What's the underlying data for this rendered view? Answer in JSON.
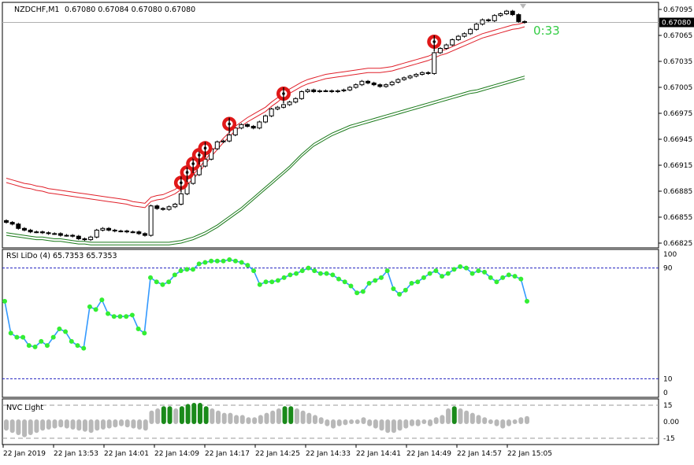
{
  "header": {
    "symbol": "NZDCHF,M1",
    "ohlc": "0.67080 0.67084 0.67080 0.67080"
  },
  "timer": "0:33",
  "price_axis": {
    "ticks": [
      "0.67095",
      "0.67065",
      "0.67035",
      "0.67005",
      "0.66975",
      "0.66945",
      "0.66915",
      "0.66885",
      "0.66855",
      "0.66825"
    ],
    "current": "0.67080"
  },
  "rsi_panel": {
    "title": "RSI LiDo (4) 65.7353 65.7353",
    "levels": [
      "100",
      "90",
      "10",
      "0"
    ]
  },
  "nvc_panel": {
    "title": "NVC Light",
    "levels": [
      "15",
      "0.00",
      "-15"
    ]
  },
  "time_axis": [
    "22 Jan 2019",
    "22 Jan 13:53",
    "22 Jan 14:01",
    "22 Jan 14:09",
    "22 Jan 14:17",
    "22 Jan 14:25",
    "22 Jan 14:33",
    "22 Jan 14:41",
    "22 Jan 14:49",
    "22 Jan 14:57",
    "22 Jan 15:05"
  ],
  "colors": {
    "upper_band": "#e0202a",
    "lower_band": "#1a7a1a",
    "rsi_line": "#3399ff",
    "rsi_dot": "#33ee33",
    "nvc_up": "#1a8a1a",
    "nvc_neutral": "#b8b8b8",
    "signal": "#e01818",
    "timer": "#33cc44"
  },
  "chart_data": {
    "type": "candlestick",
    "main": {
      "close": [
        0.66849,
        0.66847,
        0.66842,
        0.6684,
        0.66838,
        0.66838,
        0.66837,
        0.66836,
        0.66836,
        0.66834,
        0.66834,
        0.66833,
        0.6683,
        0.66829,
        0.66832,
        0.6684,
        0.66842,
        0.6684,
        0.66839,
        0.66839,
        0.66838,
        0.66838,
        0.66836,
        0.66834,
        0.66868,
        0.66865,
        0.66864,
        0.66867,
        0.6687,
        0.66882,
        0.66894,
        0.66904,
        0.66914,
        0.66922,
        0.66934,
        0.66942,
        0.66943,
        0.6695,
        0.66958,
        0.66962,
        0.6696,
        0.66958,
        0.66965,
        0.66972,
        0.6698,
        0.66982,
        0.66985,
        0.66988,
        0.66992,
        0.67,
        0.67002,
        0.67,
        0.67001,
        0.67001,
        0.67,
        0.67001,
        0.67002,
        0.67005,
        0.67008,
        0.67012,
        0.6701,
        0.67008,
        0.67006,
        0.67008,
        0.67011,
        0.67014,
        0.67016,
        0.67018,
        0.6702,
        0.67022,
        0.67021,
        0.67045,
        0.6705,
        0.67054,
        0.6706,
        0.67064,
        0.67067,
        0.67072,
        0.67078,
        0.67083,
        0.67082,
        0.67088,
        0.6709,
        0.67093,
        0.67089,
        0.67081,
        0.6708
      ],
      "upper_band": [
        0.669,
        0.66898,
        0.66896,
        0.66894,
        0.66893,
        0.66891,
        0.6689,
        0.66888,
        0.66887,
        0.66886,
        0.66885,
        0.66884,
        0.66883,
        0.66882,
        0.66881,
        0.6688,
        0.66879,
        0.66878,
        0.66877,
        0.66876,
        0.66875,
        0.66873,
        0.66872,
        0.66871,
        0.66878,
        0.6688,
        0.66881,
        0.66884,
        0.66887,
        0.66892,
        0.66898,
        0.66904,
        0.66912,
        0.66921,
        0.6693,
        0.66938,
        0.66946,
        0.66953,
        0.6696,
        0.66965,
        0.6697,
        0.66974,
        0.66978,
        0.66982,
        0.66988,
        0.66993,
        0.66999,
        0.67003,
        0.67007,
        0.67011,
        0.67014,
        0.67016,
        0.67018,
        0.6702,
        0.67021,
        0.67022,
        0.67023,
        0.67024,
        0.67025,
        0.67026,
        0.67027,
        0.67027,
        0.67027,
        0.67028,
        0.67029,
        0.67031,
        0.67033,
        0.67035,
        0.67037,
        0.67039,
        0.67041,
        0.67044,
        0.67047,
        0.67049,
        0.67052,
        0.67055,
        0.67058,
        0.67061,
        0.67064,
        0.67067,
        0.67069,
        0.67071,
        0.67073,
        0.67075,
        0.67077,
        0.67078,
        0.6708
      ],
      "mid_band": [
        0.66891,
        0.66889,
        0.66887,
        0.66885,
        0.66883,
        0.66881,
        0.66879,
        0.66877,
        0.66876,
        0.66874,
        0.66873,
        0.66872,
        0.66871,
        0.6687,
        0.66869,
        0.66868,
        0.66867,
        0.66866,
        0.66865,
        0.66864,
        0.66863,
        0.66862,
        0.66862,
        0.66862,
        0.66865,
        0.66866,
        0.66867,
        0.66868,
        0.66871,
        0.66876,
        0.66882,
        0.66889,
        0.66896,
        0.66904,
        0.66912,
        0.6692,
        0.66927,
        0.66934,
        0.66941,
        0.66947,
        0.66951,
        0.66955,
        0.66959,
        0.66963,
        0.66967,
        0.66972,
        0.66977,
        0.66982,
        0.66986,
        0.66989,
        0.66991,
        0.66993,
        0.66995,
        0.66997,
        0.66998,
        0.66999,
        0.67,
        0.67001,
        0.67002,
        0.67003,
        0.67004,
        0.67005,
        0.67005,
        0.67006,
        0.67007,
        0.67008,
        0.67009,
        0.67011,
        0.67013,
        0.67015,
        0.67017,
        0.6702,
        0.67023,
        0.67026,
        0.67029,
        0.67032,
        0.67035,
        0.67038,
        0.67041,
        0.67045,
        0.67048,
        0.67051,
        0.67054,
        0.67057,
        0.67059,
        0.67062,
        0.67064
      ],
      "lower_band": [
        0.66837,
        0.66836,
        0.66835,
        0.66834,
        0.66833,
        0.66832,
        0.66832,
        0.66831,
        0.6683,
        0.6683,
        0.66829,
        0.66828,
        0.66827,
        0.66827,
        0.66826,
        0.66826,
        0.66826,
        0.66826,
        0.66826,
        0.66826,
        0.66826,
        0.66826,
        0.66826,
        0.66826,
        0.66826,
        0.66826,
        0.66826,
        0.66826,
        0.66827,
        0.66828,
        0.6683,
        0.66832,
        0.66835,
        0.66838,
        0.66842,
        0.66846,
        0.66851,
        0.66856,
        0.66861,
        0.66866,
        0.66872,
        0.66878,
        0.66884,
        0.6689,
        0.66896,
        0.66902,
        0.66908,
        0.66914,
        0.66921,
        0.66928,
        0.66934,
        0.6694,
        0.66944,
        0.66948,
        0.66952,
        0.66955,
        0.66958,
        0.66961,
        0.66963,
        0.66965,
        0.66967,
        0.66969,
        0.66971,
        0.66973,
        0.66975,
        0.66977,
        0.66979,
        0.66981,
        0.66983,
        0.66985,
        0.66987,
        0.66989,
        0.66991,
        0.66993,
        0.66995,
        0.66997,
        0.66999,
        0.67001,
        0.67002,
        0.67004,
        0.67006,
        0.67008,
        0.6701,
        0.67012,
        0.67014,
        0.67016,
        0.67018
      ],
      "signals": [
        29,
        30,
        31,
        32,
        33,
        37,
        46,
        71
      ]
    },
    "rsi": [
      66,
      43,
      40,
      40,
      34,
      33,
      37,
      34,
      40,
      46,
      44,
      37,
      34,
      32,
      62,
      60,
      67,
      57,
      55,
      55,
      55,
      56,
      46,
      43,
      83,
      80,
      78,
      80,
      85,
      88,
      89,
      89,
      93,
      94,
      95,
      95,
      95,
      96,
      95,
      94,
      92,
      88,
      78,
      80,
      80,
      81,
      83,
      85,
      86,
      88,
      90,
      88,
      86,
      86,
      85,
      82,
      80,
      77,
      72,
      73,
      79,
      81,
      83,
      88,
      75,
      71,
      74,
      79,
      80,
      83,
      86,
      88,
      84,
      86,
      89,
      91,
      90,
      86,
      88,
      87,
      83,
      80,
      83,
      85,
      84,
      82,
      66
    ],
    "nvc": [
      -6,
      -8,
      -10,
      -12,
      -10,
      -8,
      -6,
      -5,
      -4,
      -3,
      -4,
      -5,
      -6,
      -7,
      -8,
      -6,
      -5,
      -4,
      -3,
      -2,
      -3,
      -4,
      -5,
      -6,
      8,
      10,
      12,
      12,
      10,
      12,
      14,
      15,
      15,
      12,
      10,
      8,
      6,
      6,
      4,
      4,
      2,
      2,
      4,
      6,
      8,
      10,
      12,
      12,
      10,
      8,
      6,
      4,
      2,
      -2,
      -4,
      -2,
      -1,
      0,
      0,
      2,
      -2,
      -4,
      -6,
      -8,
      -8,
      -6,
      -4,
      -2,
      -2,
      0,
      -2,
      2,
      4,
      10,
      12,
      10,
      8,
      6,
      4,
      2,
      0,
      -2,
      -4,
      -2,
      0,
      2,
      3
    ]
  }
}
